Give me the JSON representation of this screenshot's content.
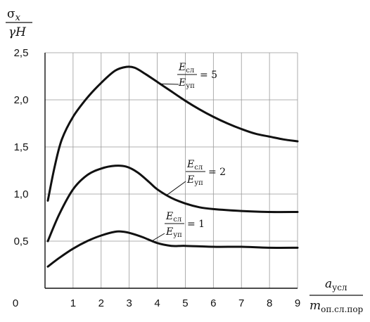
{
  "chart_data": {
    "type": "line",
    "ylabel": {
      "num": "σx",
      "num_base": "σ",
      "num_sub": "x",
      "den": "γH"
    },
    "xlabel": {
      "num_base": "a",
      "num_sub": "усл",
      "den_base": "m",
      "den_sub": "оп.сл.пор"
    },
    "xlim": [
      0,
      9
    ],
    "ylim": [
      0,
      2.5
    ],
    "x_ticks": [
      "0",
      "1",
      "2",
      "3",
      "4",
      "5",
      "6",
      "7",
      "8",
      "9"
    ],
    "y_ticks": [
      "0,5",
      "1,0",
      "1,5",
      "2,0",
      "2,5"
    ],
    "grid": true,
    "series": [
      {
        "ratio_num": "E",
        "ratio_num_sub": "сл",
        "ratio_den": "E",
        "ratio_den_sub": "уп",
        "ratio_value": "= 5",
        "x": [
          0.1,
          0.35,
          0.6,
          1.0,
          1.5,
          2.0,
          2.5,
          2.9,
          3.2,
          3.6,
          4.0,
          4.5,
          5.0,
          5.5,
          6.0,
          6.5,
          7.0,
          7.5,
          8.0,
          8.5,
          9.0
        ],
        "y": [
          0.93,
          1.3,
          1.58,
          1.82,
          2.02,
          2.18,
          2.31,
          2.35,
          2.34,
          2.27,
          2.19,
          2.09,
          1.99,
          1.9,
          1.82,
          1.75,
          1.69,
          1.64,
          1.61,
          1.58,
          1.56
        ]
      },
      {
        "ratio_num": "E",
        "ratio_num_sub": "сл",
        "ratio_den": "E",
        "ratio_den_sub": "уп",
        "ratio_value": "= 2",
        "x": [
          0.1,
          0.5,
          1.0,
          1.5,
          2.0,
          2.5,
          2.9,
          3.3,
          3.7,
          4.0,
          4.5,
          5.0,
          5.5,
          6.0,
          7.0,
          8.0,
          9.0
        ],
        "y": [
          0.5,
          0.78,
          1.05,
          1.2,
          1.27,
          1.3,
          1.29,
          1.23,
          1.13,
          1.05,
          0.96,
          0.9,
          0.86,
          0.84,
          0.82,
          0.81,
          0.81
        ]
      },
      {
        "ratio_num": "E",
        "ratio_num_sub": "сл",
        "ratio_den": "E",
        "ratio_den_sub": "уп",
        "ratio_value": "= 1",
        "x": [
          0.1,
          0.5,
          1.0,
          1.5,
          2.0,
          2.5,
          2.8,
          3.1,
          3.5,
          4.0,
          4.5,
          5.0,
          6.0,
          7.0,
          8.0,
          9.0
        ],
        "y": [
          0.23,
          0.32,
          0.42,
          0.5,
          0.56,
          0.6,
          0.6,
          0.58,
          0.54,
          0.48,
          0.45,
          0.45,
          0.44,
          0.44,
          0.43,
          0.43
        ]
      }
    ]
  }
}
